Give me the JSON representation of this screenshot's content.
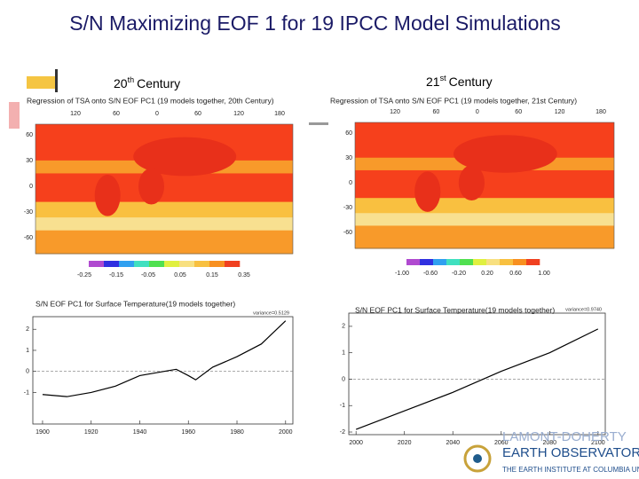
{
  "title": "S/N Maximizing EOF 1 for 19 IPCC Model Simulations",
  "headings": [
    {
      "number": "20",
      "suffix": "th",
      "rest": "Century"
    },
    {
      "number": "21",
      "suffix": "st",
      "rest": "Century"
    }
  ],
  "maps": [
    {
      "title": "Regression of TSA onto S/N EOF PC1 (19 models together, 20th Century)",
      "lon_labels": [
        "120",
        "60",
        "0",
        "60",
        "120",
        "180"
      ],
      "lat_labels": [
        "60",
        "30",
        "0",
        "-30",
        "-60"
      ],
      "colorbar_labels": [
        "-0.25",
        "-0.15",
        "-0.05",
        "0.05",
        "0.15",
        "0.35"
      ]
    },
    {
      "title": "Regression of TSA onto S/N EOF PC1 (19 models together, 21st Century)",
      "lon_labels": [
        "120",
        "60",
        "0",
        "60",
        "120",
        "180"
      ],
      "lat_labels": [
        "60",
        "30",
        "0",
        "-30",
        "-60"
      ],
      "colorbar_labels": [
        "-1.00",
        "-0.60",
        "-0.20",
        "0.20",
        "0.60",
        "1.00"
      ]
    }
  ],
  "chart_data": [
    {
      "type": "line",
      "title": "S/N EOF PC1 for Surface Temperature(19 models together)",
      "annotation": "variance=0.5129",
      "x": [
        1900,
        1910,
        1920,
        1930,
        1940,
        1950,
        1955,
        1960,
        1963,
        1970,
        1980,
        1990,
        2000
      ],
      "values": [
        -1.1,
        -1.2,
        -1.0,
        -0.7,
        -0.2,
        0.0,
        0.1,
        -0.2,
        -0.4,
        0.2,
        0.7,
        1.3,
        2.4
      ],
      "color": "#000000",
      "xlim": [
        1896,
        2003
      ],
      "ylim": [
        -2.5,
        2.6
      ],
      "xticks": [
        1900,
        1920,
        1940,
        1960,
        1980,
        2000
      ],
      "yticks": [
        -1,
        0,
        1,
        2
      ]
    },
    {
      "type": "line",
      "title": "S/N EOF PC1 for Surface Temperature(19 models together)",
      "annotation": "variance=0.9740",
      "x": [
        2000,
        2020,
        2040,
        2060,
        2080,
        2100
      ],
      "values": [
        -1.9,
        -1.2,
        -0.5,
        0.3,
        1.0,
        1.9
      ],
      "color": "#000000",
      "xlim": [
        1997,
        2103
      ],
      "ylim": [
        -2.1,
        2.5
      ],
      "xticks": [
        2000,
        2020,
        2040,
        2060,
        2080,
        2100
      ],
      "yticks": [
        -2,
        -1,
        0,
        1,
        2
      ]
    }
  ],
  "logo": {
    "line1": "LAMONT-DOHERTY",
    "line2": "EARTH OBSERVATORY",
    "line3": "THE EARTH INSTITUTE AT COLUMBIA UNIVERSITY"
  }
}
